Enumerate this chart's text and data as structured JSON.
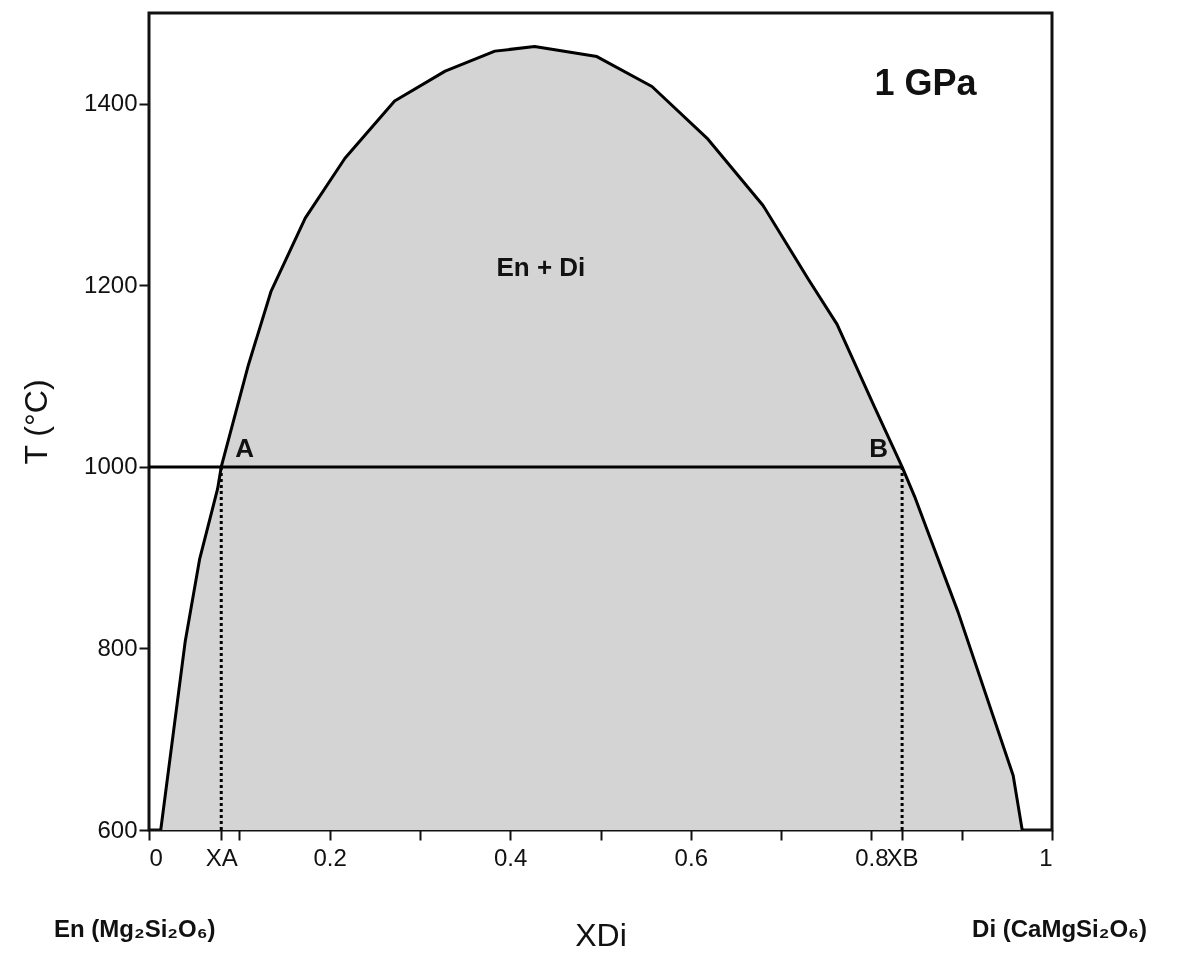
{
  "chart_data": {
    "type": "area",
    "xlabel": "XDi",
    "ylabel": "T (°C)",
    "xlim": [
      0,
      1
    ],
    "ylim": [
      600,
      1500
    ],
    "xticks": [
      0,
      {
        "value": 0.08,
        "label": "XA"
      },
      {
        "value": 0.1,
        "label": null
      },
      0.2,
      {
        "value": 0.3,
        "label": null
      },
      0.4,
      {
        "value": 0.5,
        "label": null
      },
      0.6,
      {
        "value": 0.7,
        "label": null
      },
      0.8,
      {
        "value": 0.834,
        "label": "XB"
      },
      {
        "value": 0.9,
        "label": null
      },
      1
    ],
    "yticks": [
      600,
      800,
      1000,
      1200,
      1400
    ],
    "grid": false,
    "series": [
      {
        "color": "#d4d4d4",
        "x": [
          0.013,
          0.04,
          0.056,
          0.076,
          0.08,
          0.11,
          0.135,
          0.173,
          0.217,
          0.272,
          0.328,
          0.383,
          0.427,
          0.496,
          0.557,
          0.619,
          0.68,
          0.73,
          0.762,
          0.803,
          0.834,
          0.848,
          0.865,
          0.896,
          0.957,
          0.967
        ],
        "values": [
          600,
          807,
          898,
          976,
          1000,
          1112,
          1193,
          1274,
          1340,
          1403,
          1436,
          1458,
          1463,
          1452,
          1419,
          1361,
          1288,
          1207,
          1157,
          1067,
          1000,
          967,
          922,
          840,
          660,
          600
        ]
      },
      {
        "type": "line",
        "color": "#000000",
        "x": [
          0,
          0.834
        ],
        "values": [
          1000,
          1000
        ]
      },
      {
        "type": "line",
        "color": "#000000",
        "line_style": "dotted",
        "x": [
          0.08,
          0.08
        ],
        "values": [
          1000,
          600
        ]
      },
      {
        "type": "line",
        "color": "#000000",
        "line_style": "dotted",
        "x": [
          0.834,
          0.834
        ],
        "values": [
          1000,
          600
        ]
      }
    ],
    "annotations": [
      {
        "text": "A",
        "x": 0.08,
        "y": 1000
      },
      {
        "text": "B",
        "x": 0.834,
        "y": 1000
      },
      "En + Di",
      "1 GPa",
      "En (Mg₂Si₂O₆)",
      "Di (CaMgSi₂O₆)"
    ]
  }
}
